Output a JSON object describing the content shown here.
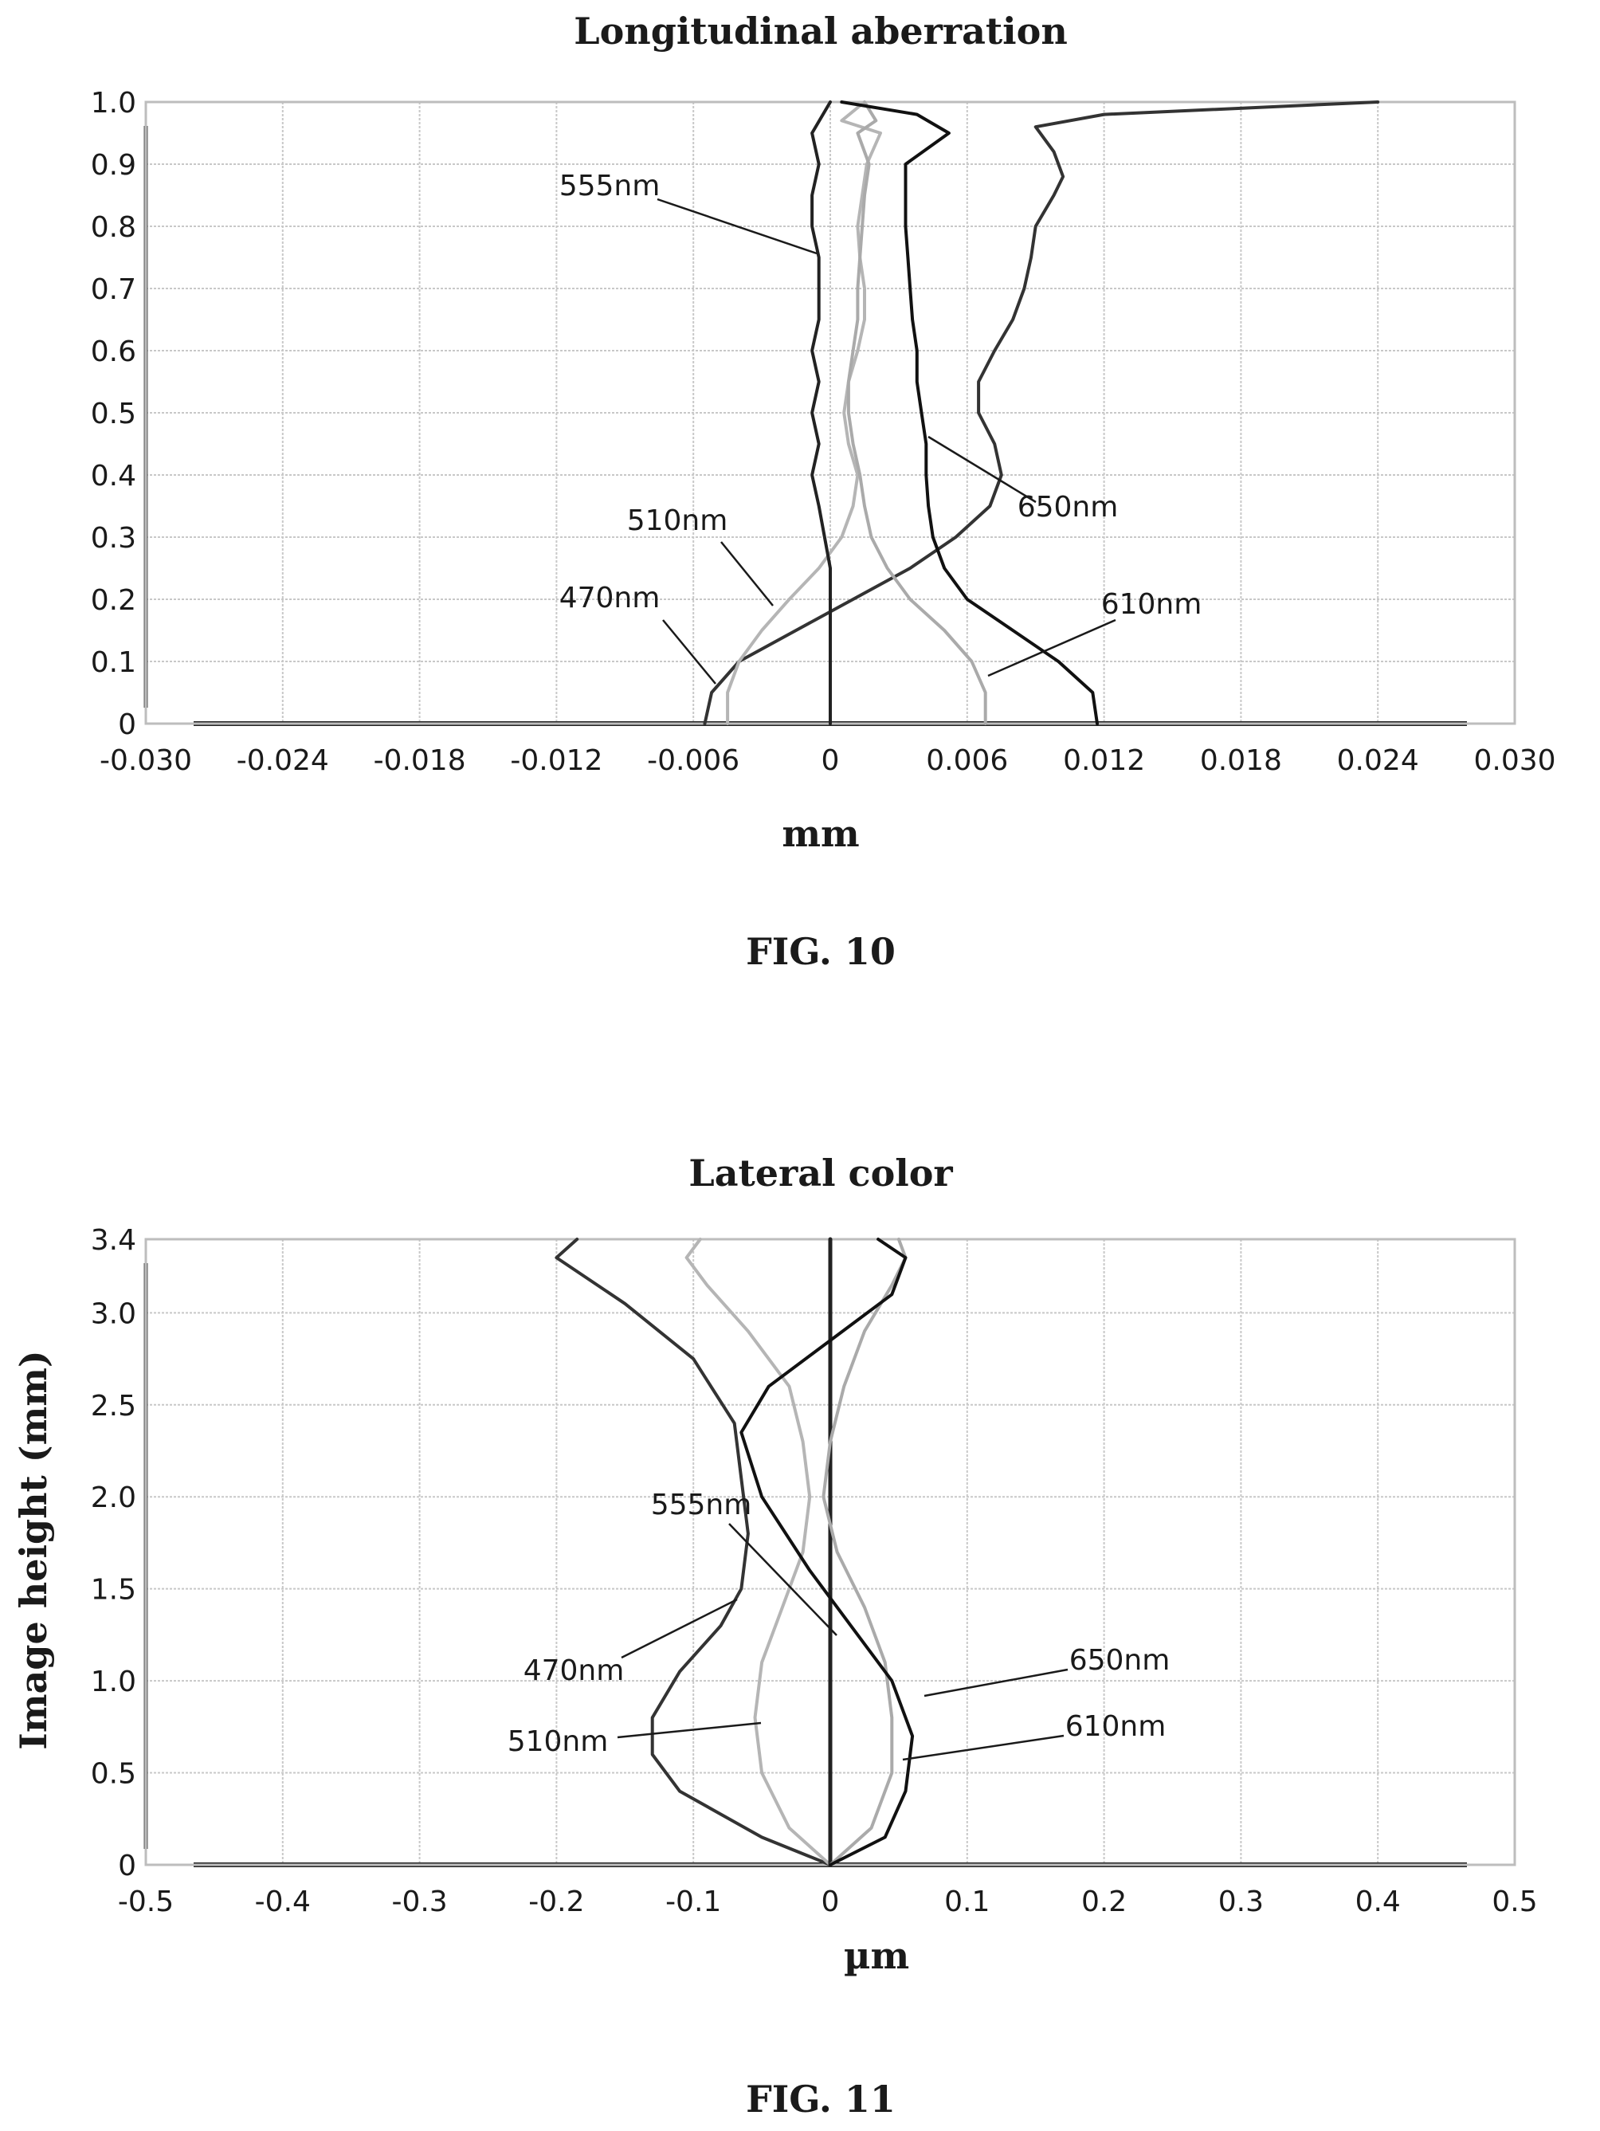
{
  "chart_data": [
    {
      "type": "line",
      "title": "Longitudinal aberration",
      "xlabel": "mm",
      "ylabel": "",
      "figure_label": "FIG. 10",
      "xlim": [
        -0.03,
        0.03
      ],
      "ylim": [
        0,
        1.0
      ],
      "x_ticks": [
        "-0.030",
        "-0.024",
        "-0.018",
        "-0.012",
        "-0.006",
        "0",
        "0.006",
        "0.012",
        "0.018",
        "0.024",
        "0.030"
      ],
      "y_ticks": [
        "0",
        "0.1",
        "0.2",
        "0.3",
        "0.4",
        "0.5",
        "0.6",
        "0.7",
        "0.8",
        "0.9",
        "1.0"
      ],
      "grid": true,
      "series": [
        {
          "name": "470nm",
          "color": "#333333",
          "points": [
            [
              -0.0055,
              0
            ],
            [
              -0.0052,
              0.05
            ],
            [
              -0.004,
              0.1
            ],
            [
              -0.0015,
              0.15
            ],
            [
              0.001,
              0.2
            ],
            [
              0.0035,
              0.25
            ],
            [
              0.0055,
              0.3
            ],
            [
              0.007,
              0.35
            ],
            [
              0.0075,
              0.4
            ],
            [
              0.0072,
              0.45
            ],
            [
              0.0065,
              0.5
            ],
            [
              0.0065,
              0.55
            ],
            [
              0.0072,
              0.6
            ],
            [
              0.008,
              0.65
            ],
            [
              0.0085,
              0.7
            ],
            [
              0.0088,
              0.75
            ],
            [
              0.009,
              0.8
            ],
            [
              0.0098,
              0.85
            ],
            [
              0.0102,
              0.88
            ],
            [
              0.0098,
              0.92
            ],
            [
              0.009,
              0.96
            ],
            [
              0.012,
              0.98
            ],
            [
              0.024,
              1.0
            ]
          ]
        },
        {
          "name": "510nm",
          "color": "#b5b5b5",
          "points": [
            [
              -0.0045,
              0
            ],
            [
              -0.0045,
              0.05
            ],
            [
              -0.004,
              0.1
            ],
            [
              -0.003,
              0.15
            ],
            [
              -0.0018,
              0.2
            ],
            [
              -0.0005,
              0.25
            ],
            [
              0.0005,
              0.3
            ],
            [
              0.001,
              0.35
            ],
            [
              0.0012,
              0.4
            ],
            [
              0.0008,
              0.45
            ],
            [
              0.0006,
              0.5
            ],
            [
              0.0008,
              0.55
            ],
            [
              0.0012,
              0.6
            ],
            [
              0.0015,
              0.65
            ],
            [
              0.0015,
              0.7
            ],
            [
              0.0013,
              0.75
            ],
            [
              0.0012,
              0.8
            ],
            [
              0.0014,
              0.85
            ],
            [
              0.0016,
              0.9
            ],
            [
              0.0022,
              0.95
            ],
            [
              0.0005,
              0.97
            ],
            [
              0.0015,
              1.0
            ]
          ]
        },
        {
          "name": "555nm",
          "color": "#222222",
          "points": [
            [
              0,
              0
            ],
            [
              0,
              0.25
            ],
            [
              -0.0005,
              0.35
            ],
            [
              -0.0008,
              0.4
            ],
            [
              -0.0005,
              0.45
            ],
            [
              -0.0008,
              0.5
            ],
            [
              -0.0005,
              0.55
            ],
            [
              -0.0008,
              0.6
            ],
            [
              -0.0005,
              0.65
            ],
            [
              -0.0005,
              0.7
            ],
            [
              -0.0005,
              0.75
            ],
            [
              -0.0008,
              0.8
            ],
            [
              -0.0008,
              0.85
            ],
            [
              -0.0005,
              0.9
            ],
            [
              -0.0008,
              0.95
            ],
            [
              0,
              1.0
            ]
          ]
        },
        {
          "name": "610nm",
          "color": "#aaaaaa",
          "points": [
            [
              0.0068,
              0
            ],
            [
              0.0068,
              0.05
            ],
            [
              0.0062,
              0.1
            ],
            [
              0.005,
              0.15
            ],
            [
              0.0035,
              0.2
            ],
            [
              0.0025,
              0.25
            ],
            [
              0.0018,
              0.3
            ],
            [
              0.0015,
              0.35
            ],
            [
              0.0013,
              0.4
            ],
            [
              0.001,
              0.45
            ],
            [
              0.0008,
              0.5
            ],
            [
              0.0008,
              0.55
            ],
            [
              0.001,
              0.6
            ],
            [
              0.0012,
              0.65
            ],
            [
              0.0012,
              0.7
            ],
            [
              0.0013,
              0.75
            ],
            [
              0.0014,
              0.8
            ],
            [
              0.0015,
              0.85
            ],
            [
              0.0017,
              0.9
            ],
            [
              0.0012,
              0.95
            ],
            [
              0.002,
              0.97
            ],
            [
              0.0015,
              1.0
            ]
          ]
        },
        {
          "name": "650nm",
          "color": "#111111",
          "points": [
            [
              0.0117,
              0
            ],
            [
              0.0115,
              0.05
            ],
            [
              0.01,
              0.1
            ],
            [
              0.008,
              0.15
            ],
            [
              0.006,
              0.2
            ],
            [
              0.005,
              0.25
            ],
            [
              0.0045,
              0.3
            ],
            [
              0.0043,
              0.35
            ],
            [
              0.0042,
              0.4
            ],
            [
              0.0042,
              0.45
            ],
            [
              0.004,
              0.5
            ],
            [
              0.0038,
              0.55
            ],
            [
              0.0038,
              0.6
            ],
            [
              0.0036,
              0.65
            ],
            [
              0.0035,
              0.7
            ],
            [
              0.0034,
              0.75
            ],
            [
              0.0033,
              0.8
            ],
            [
              0.0033,
              0.85
            ],
            [
              0.0033,
              0.9
            ],
            [
              0.0052,
              0.95
            ],
            [
              0.0038,
              0.98
            ],
            [
              0.0005,
              1.0
            ]
          ]
        }
      ]
    },
    {
      "type": "line",
      "title": "Lateral color",
      "xlabel": "µm",
      "ylabel": "Image height (mm)",
      "figure_label": "FIG. 11",
      "xlim": [
        -0.5,
        0.5
      ],
      "ylim": [
        0,
        3.4
      ],
      "x_ticks": [
        "-0.5",
        "-0.4",
        "-0.3",
        "-0.2",
        "-0.1",
        "0",
        "0.1",
        "0.2",
        "0.3",
        "0.4",
        "0.5"
      ],
      "y_ticks": [
        "0",
        "0.5",
        "1.0",
        "1.5",
        "2.0",
        "2.5",
        "3.0",
        "3.4"
      ],
      "grid": true,
      "series": [
        {
          "name": "470nm",
          "color": "#333333",
          "points": [
            [
              0,
              0
            ],
            [
              -0.05,
              0.15
            ],
            [
              -0.11,
              0.4
            ],
            [
              -0.13,
              0.6
            ],
            [
              -0.13,
              0.8
            ],
            [
              -0.11,
              1.05
            ],
            [
              -0.08,
              1.3
            ],
            [
              -0.065,
              1.5
            ],
            [
              -0.06,
              1.8
            ],
            [
              -0.065,
              2.1
            ],
            [
              -0.07,
              2.4
            ],
            [
              -0.1,
              2.75
            ],
            [
              -0.15,
              3.05
            ],
            [
              -0.2,
              3.3
            ],
            [
              -0.185,
              3.4
            ]
          ]
        },
        {
          "name": "510nm",
          "color": "#b5b5b5",
          "points": [
            [
              0,
              0
            ],
            [
              -0.03,
              0.2
            ],
            [
              -0.05,
              0.5
            ],
            [
              -0.055,
              0.8
            ],
            [
              -0.05,
              1.1
            ],
            [
              -0.035,
              1.4
            ],
            [
              -0.02,
              1.7
            ],
            [
              -0.015,
              2.0
            ],
            [
              -0.02,
              2.3
            ],
            [
              -0.03,
              2.6
            ],
            [
              -0.06,
              2.9
            ],
            [
              -0.09,
              3.15
            ],
            [
              -0.105,
              3.3
            ],
            [
              -0.095,
              3.4
            ]
          ]
        },
        {
          "name": "555nm",
          "color": "#222222",
          "points": [
            [
              0,
              0
            ],
            [
              0,
              3.4
            ]
          ]
        },
        {
          "name": "610nm",
          "color": "#aaaaaa",
          "points": [
            [
              0,
              0
            ],
            [
              0.03,
              0.2
            ],
            [
              0.045,
              0.5
            ],
            [
              0.045,
              0.8
            ],
            [
              0.04,
              1.1
            ],
            [
              0.025,
              1.4
            ],
            [
              0.005,
              1.7
            ],
            [
              -0.005,
              2.0
            ],
            [
              0,
              2.3
            ],
            [
              0.01,
              2.6
            ],
            [
              0.025,
              2.9
            ],
            [
              0.045,
              3.15
            ],
            [
              0.055,
              3.3
            ],
            [
              0.05,
              3.4
            ]
          ]
        },
        {
          "name": "650nm",
          "color": "#111111",
          "points": [
            [
              0,
              0
            ],
            [
              0.04,
              0.15
            ],
            [
              0.055,
              0.4
            ],
            [
              0.06,
              0.7
            ],
            [
              0.045,
              1.0
            ],
            [
              0.015,
              1.3
            ],
            [
              -0.015,
              1.6
            ],
            [
              -0.05,
              2.0
            ],
            [
              -0.065,
              2.35
            ],
            [
              -0.045,
              2.6
            ],
            [
              0.0,
              2.85
            ],
            [
              0.045,
              3.1
            ],
            [
              0.055,
              3.3
            ],
            [
              0.035,
              3.4
            ]
          ]
        }
      ]
    }
  ]
}
